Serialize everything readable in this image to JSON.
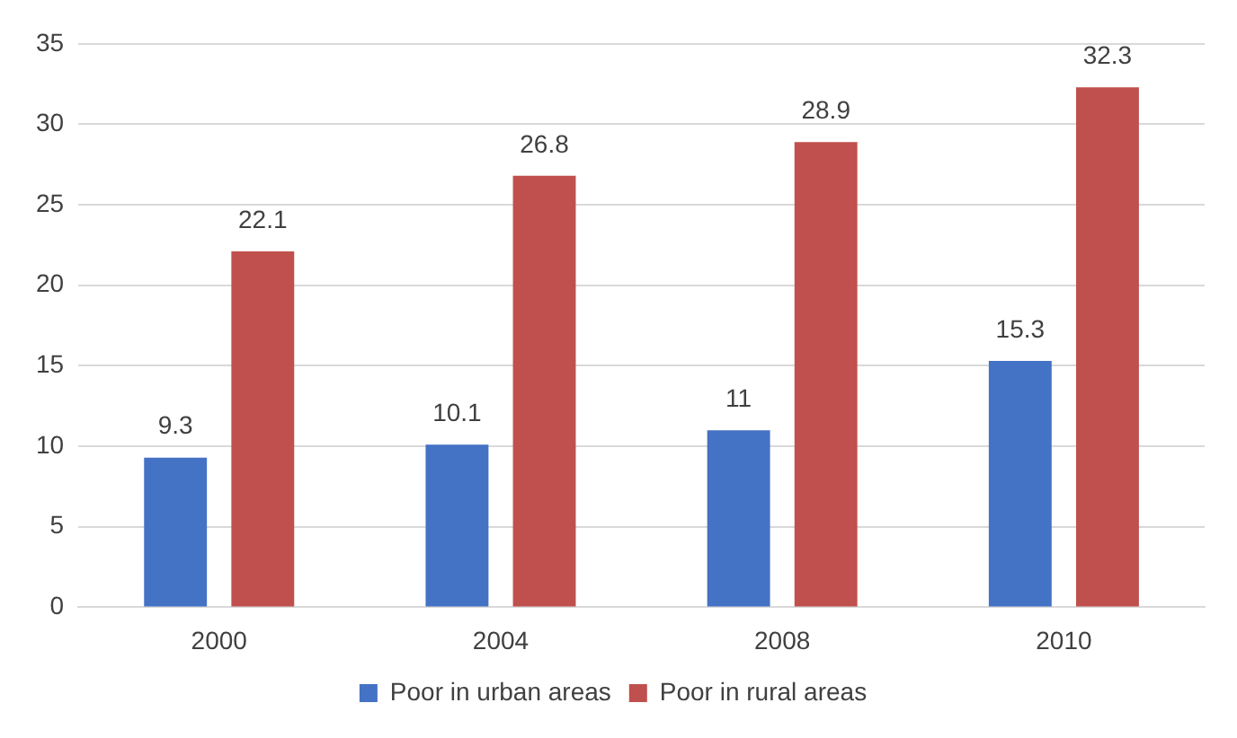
{
  "chart_data": {
    "type": "bar",
    "categories": [
      "2000",
      "2004",
      "2008",
      "2010"
    ],
    "series": [
      {
        "name": "Poor in urban areas",
        "color": "#4472c4",
        "values": [
          9.3,
          10.1,
          11,
          15.3
        ]
      },
      {
        "name": "Poor in rural areas",
        "color": "#c0504d",
        "values": [
          22.1,
          26.8,
          28.9,
          32.3
        ]
      }
    ],
    "ylim": [
      0,
      35
    ],
    "yticks": [
      0,
      5,
      10,
      15,
      20,
      25,
      30,
      35
    ],
    "grid": "y",
    "legend": "bottom",
    "data_labels": true
  }
}
